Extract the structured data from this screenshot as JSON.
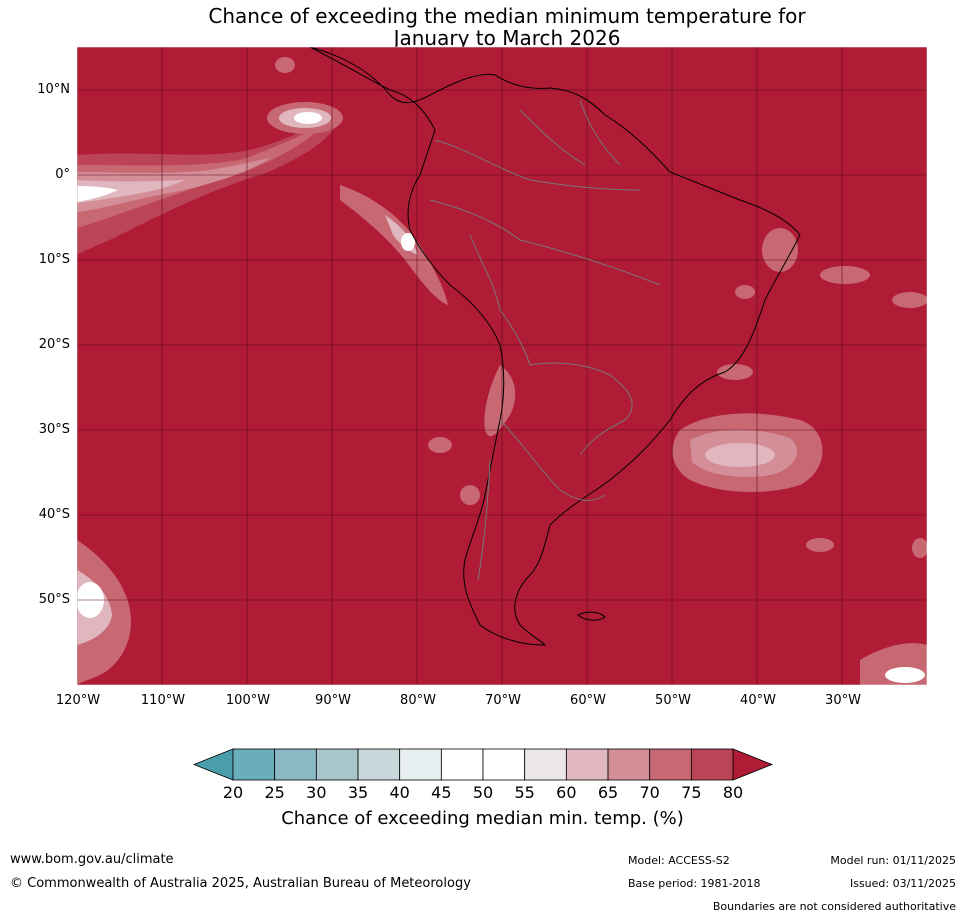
{
  "title": {
    "line1": "Chance of exceeding the median minimum temperature for",
    "line2": "January to March 2026"
  },
  "map": {
    "region": "South America",
    "background_color": "#b01b36",
    "lat_labels": [
      "10°N",
      "0°",
      "10°S",
      "20°S",
      "30°S",
      "40°S",
      "50°S"
    ],
    "lon_labels": [
      "120°W",
      "110°W",
      "100°W",
      "90°W",
      "80°W",
      "70°W",
      "60°W",
      "50°W",
      "40°W",
      "30°W"
    ]
  },
  "colorbar": {
    "ticks": [
      "20",
      "25",
      "30",
      "35",
      "40",
      "45",
      "50",
      "55",
      "60",
      "65",
      "70",
      "75",
      "80"
    ],
    "colors": [
      "#4a9dab",
      "#6aaebb",
      "#8ab8c5",
      "#a9c6cc",
      "#c8d8da",
      "#e8eff1",
      "#ffffff",
      "#ffffff",
      "#ebe6e8",
      "#e0b7be",
      "#d48e98",
      "#c86873",
      "#bc4457",
      "#b01b36"
    ],
    "label": "Chance of exceeding median min. temp. (%)"
  },
  "footer": {
    "website": "www.bom.gov.au/climate",
    "copyright": "© Commonwealth of Australia 2025, Australian Bureau of Meteorology",
    "model": "Model: ACCESS-S2",
    "base_period": "Base period: 1981-2018",
    "model_run": "Model run: 01/11/2025",
    "issued": "Issued: 03/11/2025",
    "disclaimer": "Boundaries are not considered authoritative"
  }
}
